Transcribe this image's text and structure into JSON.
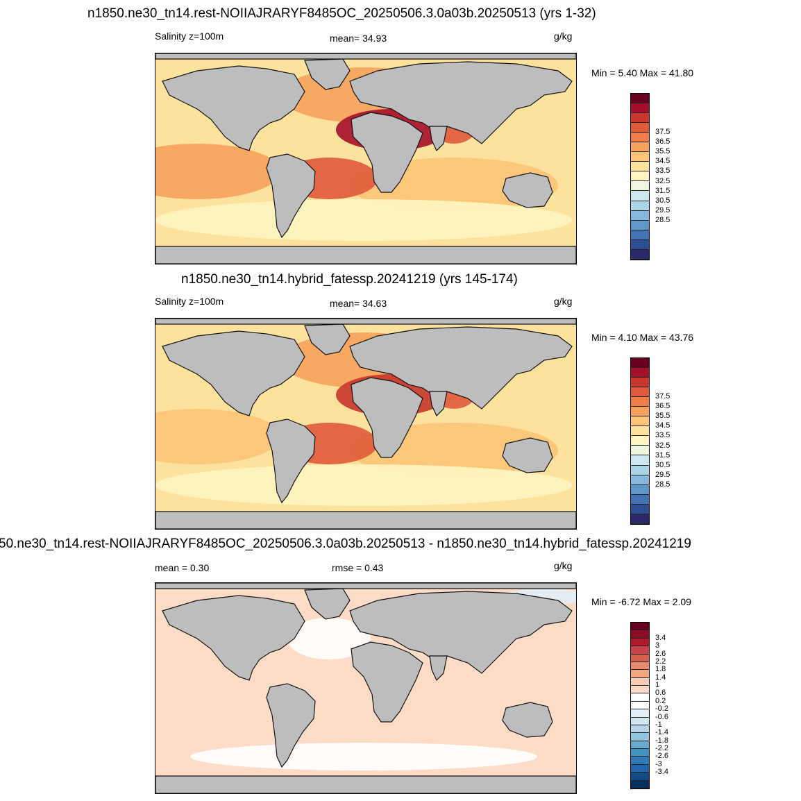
{
  "panels": [
    {
      "title": "n1850.ne30_tn14.rest-NOIIAJRARYF8485OC_20250506.3.0a03b.20250513 (yrs 1-32)",
      "left_label": "Salinity z=100m",
      "center_label": "mean=  34.93",
      "units": "g/kg",
      "minmax": "Min =   5.40 Max =  41.80",
      "colorbar_labels": [
        "37.5",
        "36.5",
        "35.5",
        "34.5",
        "33.5",
        "32.5",
        "31.5",
        "30.5",
        "29.5",
        "28.5"
      ],
      "colors": [
        "#67001f",
        "#a50f2a",
        "#c8362e",
        "#e05a3a",
        "#ef7d49",
        "#f6a25c",
        "#fbc477",
        "#fde29e",
        "#fff5c0",
        "#eef8e0",
        "#cde8ef",
        "#abd5e6",
        "#86b9db",
        "#6197c8",
        "#4473b3",
        "#2f4f95",
        "#2b2b6a"
      ]
    },
    {
      "title": "n1850.ne30_tn14.hybrid_fatessp.20241219 (yrs 145-174)",
      "left_label": "Salinity z=100m",
      "center_label": "mean=  34.63",
      "units": "g/kg",
      "minmax": "Min =   4.10 Max =  43.76",
      "colorbar_labels": [
        "37.5",
        "36.5",
        "35.5",
        "34.5",
        "33.5",
        "32.5",
        "31.5",
        "30.5",
        "29.5",
        "28.5"
      ],
      "colors": [
        "#67001f",
        "#a50f2a",
        "#c8362e",
        "#e05a3a",
        "#ef7d49",
        "#f6a25c",
        "#fbc477",
        "#fde29e",
        "#fff5c0",
        "#eef8e0",
        "#cde8ef",
        "#abd5e6",
        "#86b9db",
        "#6197c8",
        "#4473b3",
        "#2f4f95",
        "#2b2b6a"
      ]
    },
    {
      "title": "50.ne30_tn14.rest-NOIIAJRARYF8485OC_20250506.3.0a03b.20250513 - n1850.ne30_tn14.hybrid_fatessp.20241219",
      "left_label": "mean =   0.30",
      "center_label": "rmse =   0.43",
      "units": "g/kg",
      "minmax": "Min =  -6.72 Max =   2.09",
      "colorbar_labels": [
        "3.4",
        "3",
        "2.6",
        "2.2",
        "1.8",
        "1.4",
        "1",
        "0.6",
        "0.2",
        "-0.2",
        "-0.6",
        "-1",
        "-1.4",
        "-1.8",
        "-2.2",
        "-2.6",
        "-3",
        "-3.4"
      ],
      "colors": [
        "#67001f",
        "#8c0b25",
        "#b2182b",
        "#c8424a",
        "#d6604d",
        "#e68a70",
        "#f4a582",
        "#f9ccb3",
        "#fddbc7",
        "#ffffff",
        "#ffffff",
        "#e3eef6",
        "#d1e5f0",
        "#b5d4e8",
        "#92c5de",
        "#6aa8cf",
        "#4393c3",
        "#2f7ab5",
        "#2166ac",
        "#134b87",
        "#053061"
      ]
    }
  ]
}
